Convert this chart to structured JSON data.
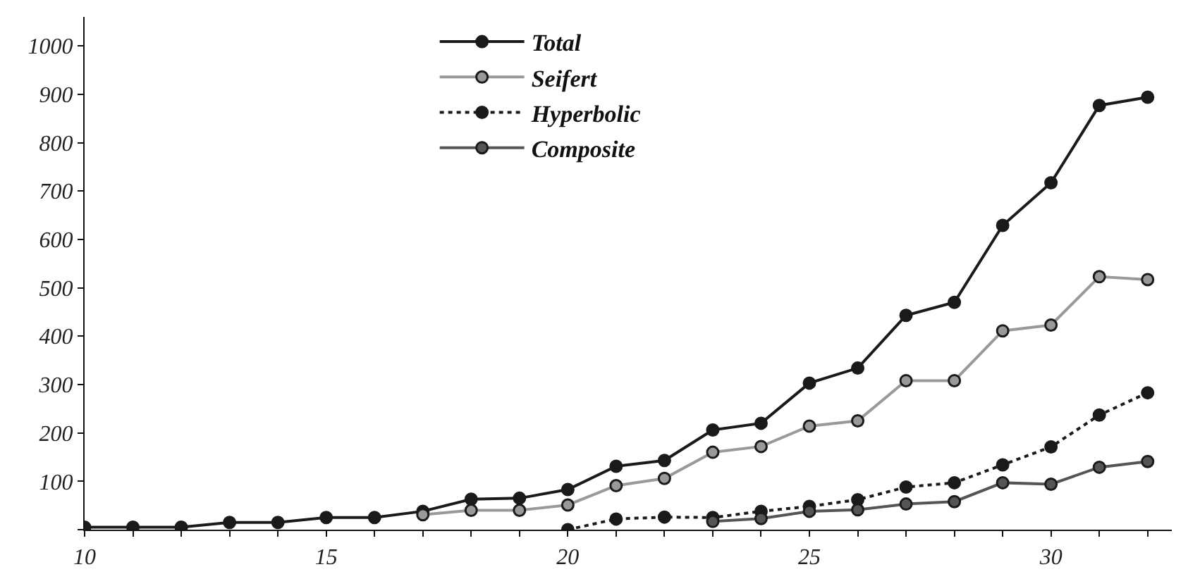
{
  "chart_data": {
    "type": "line",
    "x": [
      10,
      11,
      12,
      13,
      14,
      15,
      16,
      17,
      18,
      19,
      20,
      21,
      22,
      23,
      24,
      25,
      26,
      27,
      28,
      29,
      30,
      31,
      32
    ],
    "series": [
      {
        "name": "Total",
        "color": "#1a1a1a",
        "line_style": "solid",
        "values": [
          5,
          5,
          5,
          15,
          15,
          25,
          25,
          38,
          63,
          65,
          83,
          131,
          143,
          206,
          220,
          303,
          334,
          443,
          470,
          629,
          717,
          877,
          894
        ]
      },
      {
        "name": "Seifert",
        "color": "#999999",
        "line_style": "solid",
        "values": [
          null,
          null,
          null,
          null,
          null,
          null,
          null,
          31,
          40,
          40,
          51,
          91,
          106,
          160,
          172,
          214,
          225,
          308,
          308,
          411,
          423,
          523,
          517
        ]
      },
      {
        "name": "Hyperbolic",
        "color": "#1a1a1a",
        "line_style": "dotted",
        "values": [
          null,
          null,
          null,
          null,
          null,
          null,
          null,
          null,
          null,
          null,
          0,
          22,
          26,
          25,
          38,
          48,
          62,
          88,
          97,
          134,
          171,
          237,
          283
        ]
      },
      {
        "name": "Composite",
        "color": "#555555",
        "line_style": "solid",
        "values": [
          null,
          null,
          null,
          null,
          null,
          null,
          null,
          null,
          null,
          null,
          null,
          null,
          null,
          17,
          23,
          38,
          41,
          53,
          58,
          97,
          94,
          129,
          141
        ]
      }
    ],
    "xlim": [
      10,
      32.5
    ],
    "xticks": [
      10,
      {
        "value": 11,
        "label": null
      },
      {
        "value": 12,
        "label": null
      },
      {
        "value": 13,
        "label": null
      },
      {
        "value": 14,
        "label": null
      },
      15,
      {
        "value": 16,
        "label": null
      },
      {
        "value": 17,
        "label": null
      },
      {
        "value": 18,
        "label": null
      },
      {
        "value": 19,
        "label": null
      },
      20,
      {
        "value": 21,
        "label": null
      },
      {
        "value": 22,
        "label": null
      },
      {
        "value": 23,
        "label": null
      },
      {
        "value": 24,
        "label": null
      },
      25,
      {
        "value": 26,
        "label": null
      },
      {
        "value": 27,
        "label": null
      },
      {
        "value": 28,
        "label": null
      },
      {
        "value": 29,
        "label": null
      },
      30,
      {
        "value": 31,
        "label": null
      },
      {
        "value": 32,
        "label": null
      }
    ],
    "ylim": [
      0,
      1060
    ],
    "yticks": [
      {
        "value": 0,
        "label": null
      },
      100,
      200,
      300,
      400,
      500,
      600,
      700,
      800,
      900,
      1000
    ],
    "grid": false,
    "legend": "top",
    "marker": "circle"
  }
}
